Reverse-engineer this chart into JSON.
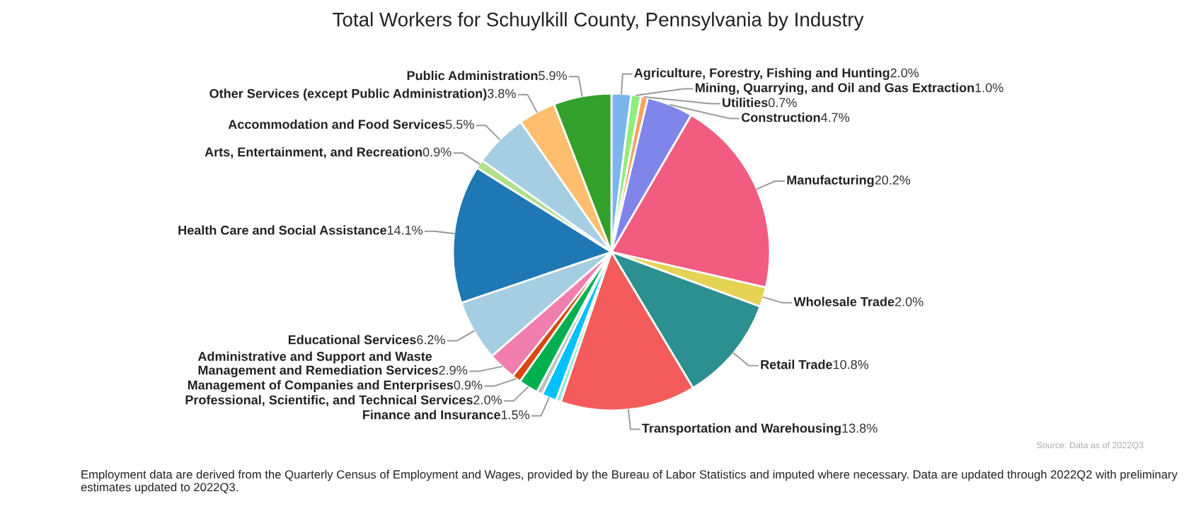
{
  "chart_data": {
    "type": "pie",
    "title": "Total Workers for Schuylkill County, Pennsylvania by Industry",
    "categories": [
      "Agriculture, Forestry, Fishing and Hunting",
      "Mining, Quarrying, and Oil and Gas Extraction",
      "Utilities",
      "Construction",
      "Manufacturing",
      "Wholesale Trade",
      "Retail Trade",
      "Transportation and Warehousing",
      null,
      "Finance and Insurance",
      null,
      "Professional, Scientific, and Technical Services",
      "Management of Companies and Enterprises",
      "Administrative and Support and Waste Management and Remediation Services",
      "Educational Services",
      "Health Care and Social Assistance",
      "Arts, Entertainment, and Recreation",
      "Accommodation and Food Services",
      "Other Services (except Public Administration)",
      "Public Administration"
    ],
    "values": [
      2.0,
      1.0,
      0.7,
      4.7,
      20.2,
      2.0,
      10.8,
      13.8,
      0.5,
      1.5,
      0.6,
      2.0,
      0.9,
      2.9,
      6.2,
      14.1,
      0.9,
      5.5,
      3.8,
      5.9
    ],
    "value_labels": [
      "2.0%",
      "1.0%",
      "0.7%",
      "4.7%",
      "20.2%",
      "2.0%",
      "10.8%",
      "13.8%",
      null,
      "1.5%",
      null,
      "2.0%",
      "0.9%",
      "2.9%",
      "6.2%",
      "14.1%",
      "0.9%",
      "5.5%",
      "3.8%",
      "5.9%"
    ],
    "colors": [
      "#7cb5ec",
      "#90ed7d",
      "#f7a35c",
      "#8085e9",
      "#f15c80",
      "#e4d354",
      "#2b908f",
      "#f45b5b",
      "#91e8e1",
      "#00c0ff",
      "#c0c0c0",
      "#00b050",
      "#d9480f",
      "#f07fb0",
      "#a6cee3",
      "#1f78b4",
      "#b2df8a",
      "#a6cee3",
      "#fdbf6f",
      "#33a02c"
    ],
    "annotations": [
      "Employment data are derived from the Quarterly Census of Employment and Wages, provided by the Bureau of Labor Statistics and imputed where necessary. Data are updated through 2022Q2 with preliminary estimates updated to 2022Q3.",
      "Source: Data as of 2022Q3"
    ]
  }
}
